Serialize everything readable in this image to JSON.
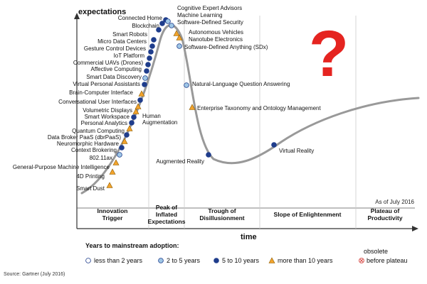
{
  "chart_data": {
    "type": "line",
    "title": "",
    "ylabel": "expectations",
    "xlabel": "time",
    "as_of": "As of July 2016",
    "source": "Source: Gartner (July 2016)",
    "question_mark": "?",
    "phases": [
      {
        "lines": [
          "Innovation",
          "Trigger"
        ]
      },
      {
        "lines": [
          "Peak of",
          "Inflated",
          "Expectations"
        ]
      },
      {
        "lines": [
          "Trough of",
          "Disillusionment"
        ]
      },
      {
        "lines": [
          "Slope of Enlightenment"
        ]
      },
      {
        "lines": [
          "Plateau of",
          "Productivity"
        ]
      }
    ],
    "legend": {
      "title": "Years to mainstream adoption:",
      "items": [
        {
          "label": "less than 2 years",
          "symbol": "circle",
          "color": "#ffffff"
        },
        {
          "label": "2 to 5 years",
          "symbol": "circle",
          "color": "#9fc7e6"
        },
        {
          "label": "5 to 10 years",
          "symbol": "circle",
          "color": "#1f3d8c"
        },
        {
          "label": "more than 10 years",
          "symbol": "triangle",
          "color": "#f2a32c"
        }
      ],
      "obsolete_label": [
        "obsolete",
        "before plateau"
      ],
      "obsolete_color": "#d9534f"
    },
    "technologies": [
      {
        "name": "Smart Dust",
        "category": "more than 10 years"
      },
      {
        "name": "4D Printing",
        "category": "more than 10 years"
      },
      {
        "name": "General-Purpose Machine Intelligence",
        "category": "more than 10 years"
      },
      {
        "name": "802.11ax",
        "category": "2 to 5 years"
      },
      {
        "name": "Context Brokering",
        "category": "5 to 10 years"
      },
      {
        "name": "Neuromorphic Hardware",
        "category": "more than 10 years"
      },
      {
        "name": "Data Broker PaaS (dbrPaaS)",
        "category": "5 to 10 years"
      },
      {
        "name": "Quantum Computing",
        "category": "more than 10 years"
      },
      {
        "name": "Personal Analytics",
        "category": "5 to 10 years"
      },
      {
        "name": "Smart Workspace",
        "category": "5 to 10 years"
      },
      {
        "name": "Volumetric Displays",
        "category": "more than 10 years"
      },
      {
        "name": "Human Augmentation",
        "category": "more than 10 years"
      },
      {
        "name": "Conversational User Interfaces",
        "category": "5 to 10 years"
      },
      {
        "name": "Brain-Computer Interface",
        "category": "more than 10 years"
      },
      {
        "name": "Virtual Personal Assistants",
        "category": "5 to 10 years"
      },
      {
        "name": "Smart Data Discovery",
        "category": "2 to 5 years"
      },
      {
        "name": "Affective Computing",
        "category": "5 to 10 years"
      },
      {
        "name": "Commercial UAVs (Drones)",
        "category": "5 to 10 years"
      },
      {
        "name": "IoT Platform",
        "category": "5 to 10 years"
      },
      {
        "name": "Gesture Control Devices",
        "category": "5 to 10 years"
      },
      {
        "name": "Micro Data Centers",
        "category": "5 to 10 years"
      },
      {
        "name": "Smart Robots",
        "category": "5 to 10 years"
      },
      {
        "name": "Blockchain",
        "category": "5 to 10 years"
      },
      {
        "name": "Connected Home",
        "category": "5 to 10 years"
      },
      {
        "name": "Cognitive Expert Advisors",
        "category": "5 to 10 years"
      },
      {
        "name": "Machine Learning",
        "category": "2 to 5 years"
      },
      {
        "name": "Software-Defined Security",
        "category": "2 to 5 years"
      },
      {
        "name": "Autonomous Vehicles",
        "category": "more than 10 years"
      },
      {
        "name": "Nanotube Electronics",
        "category": "more than 10 years"
      },
      {
        "name": "Software-Defined Anything (SDx)",
        "category": "2 to 5 years"
      },
      {
        "name": "Natural-Language Question Answering",
        "category": "2 to 5 years"
      },
      {
        "name": "Enterprise Taxonomy and Ontology Management",
        "category": "more than 10 years"
      },
      {
        "name": "Augmented Reality",
        "category": "5 to 10 years"
      },
      {
        "name": "Virtual Reality",
        "category": "5 to 10 years"
      }
    ]
  }
}
